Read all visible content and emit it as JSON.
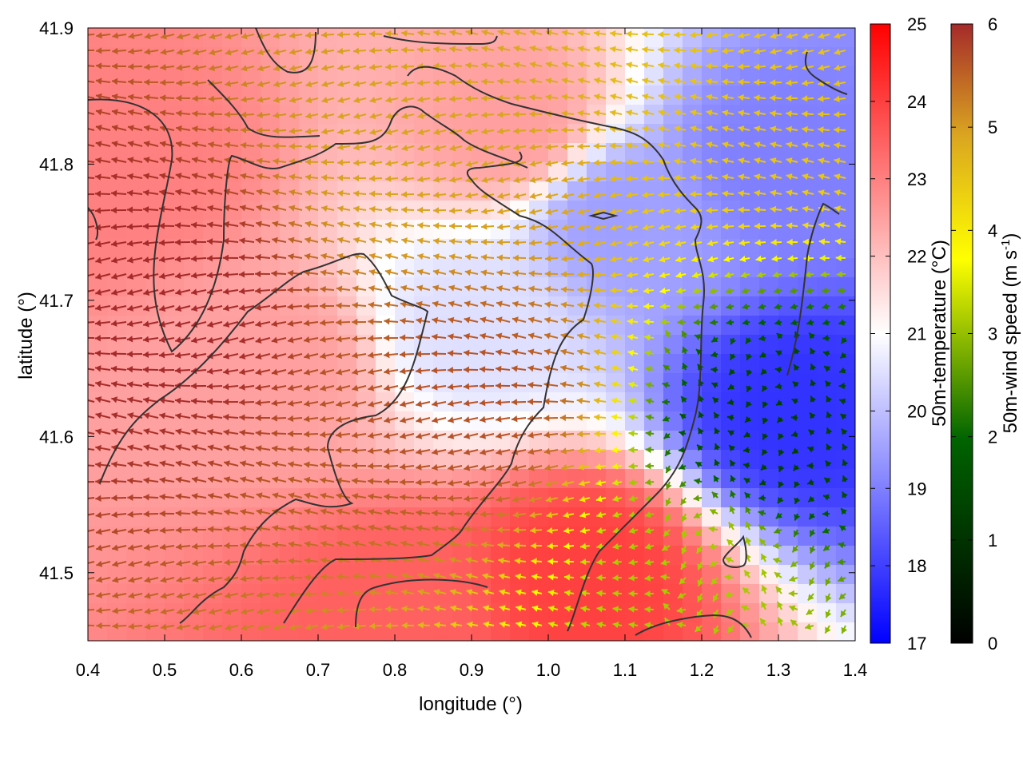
{
  "chart_data": {
    "type": "heatmap",
    "title": "",
    "xlabel": "longitude (°)",
    "ylabel": "latitude (°)",
    "xlim": [
      0.4,
      1.4
    ],
    "ylim": [
      41.45,
      41.9
    ],
    "xticks": [
      "0.4",
      "0.5",
      "0.6",
      "0.7",
      "0.8",
      "0.9",
      "1.0",
      "1.1",
      "1.2",
      "1.3",
      "1.4"
    ],
    "yticks": [
      "41.5",
      "41.6",
      "41.7",
      "41.8",
      "41.9"
    ],
    "xtick_values": [
      0.4,
      0.5,
      0.6,
      0.7,
      0.8,
      0.9,
      1.0,
      1.1,
      1.2,
      1.3,
      1.4
    ],
    "ytick_values": [
      41.5,
      41.6,
      41.7,
      41.8,
      41.9
    ],
    "layers": [
      "filled temperature field",
      "wind vectors colored by speed",
      "terrain contour lines"
    ],
    "temperature_colorbar": {
      "label": "50m-temperature (°C)",
      "range": [
        17,
        25
      ],
      "ticks": [
        "17",
        "18",
        "19",
        "20",
        "21",
        "22",
        "23",
        "24",
        "25"
      ],
      "tick_values": [
        17,
        18,
        19,
        20,
        21,
        22,
        23,
        24,
        25
      ],
      "colors": [
        "#0000ff",
        "#ffffff",
        "#ff0000"
      ]
    },
    "wind_colorbar": {
      "label": "50m-wind speed (m s",
      "label_sup": "-1",
      "label_end": ")",
      "range": [
        0,
        6
      ],
      "ticks": [
        "0",
        "1",
        "2",
        "3",
        "4",
        "5",
        "6"
      ],
      "tick_values": [
        0,
        1,
        2,
        3,
        4,
        5,
        6
      ],
      "colors": [
        "#000000",
        "#006400",
        "#ffff00",
        "#daa520",
        "#a52a2a"
      ]
    },
    "temperature_hotspots": [
      {
        "lon": 0.45,
        "lat": 41.8,
        "value": 23.0
      },
      {
        "lon": 0.65,
        "lat": 41.65,
        "value": 22.5
      },
      {
        "lon": 0.95,
        "lat": 41.83,
        "value": 22.5
      },
      {
        "lon": 1.05,
        "lat": 41.5,
        "value": 24.0
      },
      {
        "lon": 0.8,
        "lat": 41.47,
        "value": 23.5
      },
      {
        "lon": 1.32,
        "lat": 41.62,
        "value": 17.8
      },
      {
        "lon": 1.3,
        "lat": 41.8,
        "value": 19.0
      },
      {
        "lon": 1.1,
        "lat": 41.76,
        "value": 19.5
      },
      {
        "lon": 0.9,
        "lat": 41.68,
        "value": 20.5
      }
    ],
    "wind_speed_regions": [
      {
        "lon": 0.5,
        "lat": 41.7,
        "value": 6.0
      },
      {
        "lon": 0.9,
        "lat": 41.62,
        "value": 5.5
      },
      {
        "lon": 0.85,
        "lat": 41.8,
        "value": 4.5
      },
      {
        "lon": 1.3,
        "lat": 41.6,
        "value": 1.0
      },
      {
        "lon": 1.2,
        "lat": 41.5,
        "value": 2.5
      },
      {
        "lon": 1.3,
        "lat": 41.85,
        "value": 4.0
      }
    ],
    "wind_direction": "mostly westward (east to west) over the western half; weak and variable in the south-east"
  }
}
